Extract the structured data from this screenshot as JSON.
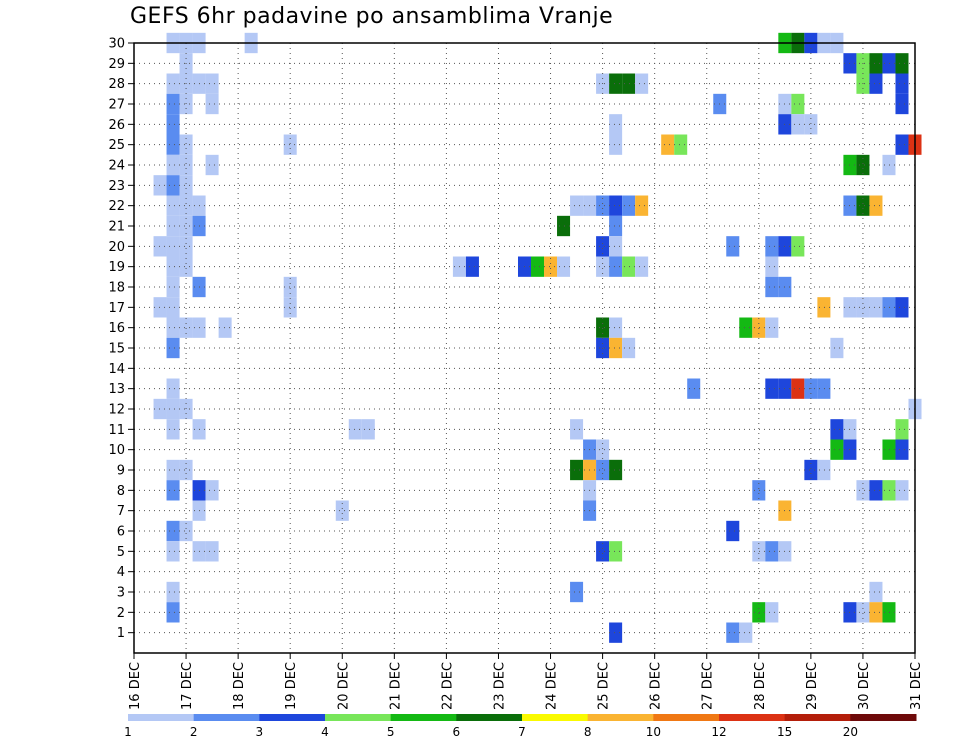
{
  "chart_data": {
    "type": "heatmap",
    "title": "GEFS 6hr padavine po ansamblima Vranje",
    "xlabel": "",
    "ylabel": "",
    "x_tick_labels": [
      "16 DEC",
      "17 DEC",
      "18 DEC",
      "19 DEC",
      "20 DEC",
      "21 DEC",
      "22 DEC",
      "23 DEC",
      "24 DEC",
      "25 DEC",
      "26 DEC",
      "27 DEC",
      "28 DEC",
      "29 DEC",
      "30 DEC",
      "31 DEC"
    ],
    "y_tick_labels": [
      "1",
      "2",
      "3",
      "4",
      "5",
      "6",
      "7",
      "8",
      "9",
      "10",
      "11",
      "12",
      "13",
      "14",
      "15",
      "16",
      "17",
      "18",
      "19",
      "20",
      "21",
      "22",
      "23",
      "24",
      "25",
      "26",
      "27",
      "28",
      "29",
      "30"
    ],
    "x_range": [
      0,
      60
    ],
    "y_range": [
      0,
      30
    ],
    "grid": true,
    "legend_placement": "bottom",
    "legend": {
      "labels": [
        "1",
        "2",
        "3",
        "4",
        "5",
        "6",
        "7",
        "8",
        "10",
        "12",
        "15",
        "20"
      ],
      "colors": [
        "#b4c8f5",
        "#5a8cf0",
        "#1e46dc",
        "#78e65a",
        "#14b914",
        "#0a6e0a",
        "#fafa00",
        "#fab432",
        "#f07814",
        "#dc3214",
        "#b41e0a",
        "#6e0a0a"
      ]
    },
    "cells": [
      {
        "member": 30,
        "step": 3,
        "level": 1
      },
      {
        "member": 30,
        "step": 4,
        "level": 1
      },
      {
        "member": 30,
        "step": 5,
        "level": 1
      },
      {
        "member": 30,
        "step": 9,
        "level": 1
      },
      {
        "member": 30,
        "step": 50,
        "level": 5
      },
      {
        "member": 30,
        "step": 51,
        "level": 6
      },
      {
        "member": 30,
        "step": 52,
        "level": 3
      },
      {
        "member": 30,
        "step": 53,
        "level": 1
      },
      {
        "member": 30,
        "step": 54,
        "level": 1
      },
      {
        "member": 29,
        "step": 4,
        "level": 1
      },
      {
        "member": 29,
        "step": 55,
        "level": 3
      },
      {
        "member": 29,
        "step": 56,
        "level": 4
      },
      {
        "member": 29,
        "step": 57,
        "level": 6
      },
      {
        "member": 29,
        "step": 58,
        "level": 3
      },
      {
        "member": 29,
        "step": 59,
        "level": 6
      },
      {
        "member": 28,
        "step": 3,
        "level": 1
      },
      {
        "member": 28,
        "step": 4,
        "level": 1
      },
      {
        "member": 28,
        "step": 5,
        "level": 1
      },
      {
        "member": 28,
        "step": 6,
        "level": 1
      },
      {
        "member": 28,
        "step": 36,
        "level": 1
      },
      {
        "member": 28,
        "step": 37,
        "level": 6
      },
      {
        "member": 28,
        "step": 38,
        "level": 6
      },
      {
        "member": 28,
        "step": 39,
        "level": 1
      },
      {
        "member": 28,
        "step": 56,
        "level": 4
      },
      {
        "member": 28,
        "step": 57,
        "level": 3
      },
      {
        "member": 28,
        "step": 59,
        "level": 3
      },
      {
        "member": 27,
        "step": 3,
        "level": 2
      },
      {
        "member": 27,
        "step": 4,
        "level": 1
      },
      {
        "member": 27,
        "step": 6,
        "level": 1
      },
      {
        "member": 27,
        "step": 45,
        "level": 2
      },
      {
        "member": 27,
        "step": 50,
        "level": 1
      },
      {
        "member": 27,
        "step": 51,
        "level": 4
      },
      {
        "member": 27,
        "step": 59,
        "level": 3
      },
      {
        "member": 26,
        "step": 3,
        "level": 2
      },
      {
        "member": 26,
        "step": 37,
        "level": 1
      },
      {
        "member": 26,
        "step": 50,
        "level": 3
      },
      {
        "member": 26,
        "step": 51,
        "level": 1
      },
      {
        "member": 26,
        "step": 52,
        "level": 1
      },
      {
        "member": 25,
        "step": 3,
        "level": 2
      },
      {
        "member": 25,
        "step": 4,
        "level": 1
      },
      {
        "member": 25,
        "step": 12,
        "level": 1
      },
      {
        "member": 25,
        "step": 37,
        "level": 1
      },
      {
        "member": 25,
        "step": 41,
        "level": 8
      },
      {
        "member": 25,
        "step": 42,
        "level": 4
      },
      {
        "member": 25,
        "step": 59,
        "level": 3
      },
      {
        "member": 25,
        "step": 60,
        "level": 12
      },
      {
        "member": 24,
        "step": 3,
        "level": 1
      },
      {
        "member": 24,
        "step": 4,
        "level": 1
      },
      {
        "member": 24,
        "step": 6,
        "level": 1
      },
      {
        "member": 24,
        "step": 55,
        "level": 5
      },
      {
        "member": 24,
        "step": 56,
        "level": 6
      },
      {
        "member": 24,
        "step": 58,
        "level": 1
      },
      {
        "member": 23,
        "step": 2,
        "level": 1
      },
      {
        "member": 23,
        "step": 3,
        "level": 2
      },
      {
        "member": 23,
        "step": 4,
        "level": 1
      },
      {
        "member": 22,
        "step": 3,
        "level": 1
      },
      {
        "member": 22,
        "step": 4,
        "level": 1
      },
      {
        "member": 22,
        "step": 5,
        "level": 1
      },
      {
        "member": 22,
        "step": 34,
        "level": 1
      },
      {
        "member": 22,
        "step": 35,
        "level": 1
      },
      {
        "member": 22,
        "step": 36,
        "level": 2
      },
      {
        "member": 22,
        "step": 37,
        "level": 3
      },
      {
        "member": 22,
        "step": 38,
        "level": 2
      },
      {
        "member": 22,
        "step": 39,
        "level": 8
      },
      {
        "member": 22,
        "step": 55,
        "level": 2
      },
      {
        "member": 22,
        "step": 56,
        "level": 6
      },
      {
        "member": 22,
        "step": 57,
        "level": 8
      },
      {
        "member": 21,
        "step": 3,
        "level": 1
      },
      {
        "member": 21,
        "step": 4,
        "level": 1
      },
      {
        "member": 21,
        "step": 5,
        "level": 2
      },
      {
        "member": 21,
        "step": 33,
        "level": 6
      },
      {
        "member": 21,
        "step": 37,
        "level": 2
      },
      {
        "member": 20,
        "step": 2,
        "level": 1
      },
      {
        "member": 20,
        "step": 3,
        "level": 1
      },
      {
        "member": 20,
        "step": 4,
        "level": 1
      },
      {
        "member": 20,
        "step": 36,
        "level": 3
      },
      {
        "member": 20,
        "step": 37,
        "level": 1
      },
      {
        "member": 20,
        "step": 46,
        "level": 2
      },
      {
        "member": 20,
        "step": 49,
        "level": 2
      },
      {
        "member": 20,
        "step": 50,
        "level": 3
      },
      {
        "member": 20,
        "step": 51,
        "level": 4
      },
      {
        "member": 19,
        "step": 3,
        "level": 1
      },
      {
        "member": 19,
        "step": 4,
        "level": 1
      },
      {
        "member": 19,
        "step": 25,
        "level": 1
      },
      {
        "member": 19,
        "step": 26,
        "level": 3
      },
      {
        "member": 19,
        "step": 30,
        "level": 3
      },
      {
        "member": 19,
        "step": 31,
        "level": 5
      },
      {
        "member": 19,
        "step": 32,
        "level": 8
      },
      {
        "member": 19,
        "step": 33,
        "level": 1
      },
      {
        "member": 19,
        "step": 36,
        "level": 1
      },
      {
        "member": 19,
        "step": 37,
        "level": 2
      },
      {
        "member": 19,
        "step": 38,
        "level": 4
      },
      {
        "member": 19,
        "step": 39,
        "level": 1
      },
      {
        "member": 19,
        "step": 49,
        "level": 1
      },
      {
        "member": 18,
        "step": 3,
        "level": 1
      },
      {
        "member": 18,
        "step": 5,
        "level": 2
      },
      {
        "member": 18,
        "step": 12,
        "level": 1
      },
      {
        "member": 18,
        "step": 49,
        "level": 2
      },
      {
        "member": 18,
        "step": 50,
        "level": 2
      },
      {
        "member": 17,
        "step": 2,
        "level": 1
      },
      {
        "member": 17,
        "step": 3,
        "level": 1
      },
      {
        "member": 17,
        "step": 12,
        "level": 1
      },
      {
        "member": 17,
        "step": 53,
        "level": 8
      },
      {
        "member": 17,
        "step": 55,
        "level": 1
      },
      {
        "member": 17,
        "step": 56,
        "level": 1
      },
      {
        "member": 17,
        "step": 57,
        "level": 1
      },
      {
        "member": 17,
        "step": 58,
        "level": 2
      },
      {
        "member": 17,
        "step": 59,
        "level": 3
      },
      {
        "member": 16,
        "step": 3,
        "level": 1
      },
      {
        "member": 16,
        "step": 4,
        "level": 1
      },
      {
        "member": 16,
        "step": 5,
        "level": 1
      },
      {
        "member": 16,
        "step": 7,
        "level": 1
      },
      {
        "member": 16,
        "step": 36,
        "level": 6
      },
      {
        "member": 16,
        "step": 37,
        "level": 1
      },
      {
        "member": 16,
        "step": 47,
        "level": 5
      },
      {
        "member": 16,
        "step": 48,
        "level": 8
      },
      {
        "member": 16,
        "step": 49,
        "level": 1
      },
      {
        "member": 15,
        "step": 3,
        "level": 2
      },
      {
        "member": 15,
        "step": 36,
        "level": 3
      },
      {
        "member": 15,
        "step": 37,
        "level": 8
      },
      {
        "member": 15,
        "step": 38,
        "level": 1
      },
      {
        "member": 15,
        "step": 54,
        "level": 1
      },
      {
        "member": 13,
        "step": 3,
        "level": 1
      },
      {
        "member": 13,
        "step": 43,
        "level": 2
      },
      {
        "member": 13,
        "step": 49,
        "level": 3
      },
      {
        "member": 13,
        "step": 50,
        "level": 3
      },
      {
        "member": 13,
        "step": 51,
        "level": 12
      },
      {
        "member": 13,
        "step": 52,
        "level": 2
      },
      {
        "member": 13,
        "step": 53,
        "level": 2
      },
      {
        "member": 12,
        "step": 2,
        "level": 1
      },
      {
        "member": 12,
        "step": 3,
        "level": 1
      },
      {
        "member": 12,
        "step": 4,
        "level": 1
      },
      {
        "member": 12,
        "step": 60,
        "level": 1
      },
      {
        "member": 11,
        "step": 3,
        "level": 1
      },
      {
        "member": 11,
        "step": 5,
        "level": 1
      },
      {
        "member": 11,
        "step": 17,
        "level": 1
      },
      {
        "member": 11,
        "step": 18,
        "level": 1
      },
      {
        "member": 11,
        "step": 34,
        "level": 1
      },
      {
        "member": 11,
        "step": 54,
        "level": 3
      },
      {
        "member": 11,
        "step": 55,
        "level": 1
      },
      {
        "member": 11,
        "step": 59,
        "level": 4
      },
      {
        "member": 10,
        "step": 35,
        "level": 2
      },
      {
        "member": 10,
        "step": 36,
        "level": 1
      },
      {
        "member": 10,
        "step": 54,
        "level": 5
      },
      {
        "member": 10,
        "step": 55,
        "level": 3
      },
      {
        "member": 10,
        "step": 58,
        "level": 5
      },
      {
        "member": 10,
        "step": 59,
        "level": 3
      },
      {
        "member": 9,
        "step": 3,
        "level": 1
      },
      {
        "member": 9,
        "step": 4,
        "level": 1
      },
      {
        "member": 9,
        "step": 34,
        "level": 6
      },
      {
        "member": 9,
        "step": 35,
        "level": 8
      },
      {
        "member": 9,
        "step": 36,
        "level": 2
      },
      {
        "member": 9,
        "step": 37,
        "level": 6
      },
      {
        "member": 9,
        "step": 52,
        "level": 3
      },
      {
        "member": 9,
        "step": 53,
        "level": 1
      },
      {
        "member": 8,
        "step": 3,
        "level": 2
      },
      {
        "member": 8,
        "step": 5,
        "level": 3
      },
      {
        "member": 8,
        "step": 6,
        "level": 1
      },
      {
        "member": 8,
        "step": 35,
        "level": 1
      },
      {
        "member": 8,
        "step": 48,
        "level": 2
      },
      {
        "member": 8,
        "step": 56,
        "level": 1
      },
      {
        "member": 8,
        "step": 57,
        "level": 3
      },
      {
        "member": 8,
        "step": 58,
        "level": 4
      },
      {
        "member": 8,
        "step": 59,
        "level": 1
      },
      {
        "member": 7,
        "step": 5,
        "level": 1
      },
      {
        "member": 7,
        "step": 16,
        "level": 1
      },
      {
        "member": 7,
        "step": 35,
        "level": 2
      },
      {
        "member": 7,
        "step": 50,
        "level": 8
      },
      {
        "member": 6,
        "step": 3,
        "level": 2
      },
      {
        "member": 6,
        "step": 4,
        "level": 1
      },
      {
        "member": 6,
        "step": 46,
        "level": 3
      },
      {
        "member": 5,
        "step": 3,
        "level": 1
      },
      {
        "member": 5,
        "step": 5,
        "level": 1
      },
      {
        "member": 5,
        "step": 6,
        "level": 1
      },
      {
        "member": 5,
        "step": 36,
        "level": 3
      },
      {
        "member": 5,
        "step": 37,
        "level": 4
      },
      {
        "member": 5,
        "step": 48,
        "level": 1
      },
      {
        "member": 5,
        "step": 49,
        "level": 2
      },
      {
        "member": 5,
        "step": 50,
        "level": 1
      },
      {
        "member": 3,
        "step": 3,
        "level": 1
      },
      {
        "member": 3,
        "step": 34,
        "level": 2
      },
      {
        "member": 3,
        "step": 57,
        "level": 1
      },
      {
        "member": 2,
        "step": 3,
        "level": 2
      },
      {
        "member": 2,
        "step": 48,
        "level": 5
      },
      {
        "member": 2,
        "step": 49,
        "level": 1
      },
      {
        "member": 2,
        "step": 55,
        "level": 3
      },
      {
        "member": 2,
        "step": 56,
        "level": 1
      },
      {
        "member": 2,
        "step": 57,
        "level": 8
      },
      {
        "member": 2,
        "step": 58,
        "level": 5
      },
      {
        "member": 1,
        "step": 37,
        "level": 3
      },
      {
        "member": 1,
        "step": 46,
        "level": 2
      },
      {
        "member": 1,
        "step": 47,
        "level": 1
      }
    ]
  }
}
